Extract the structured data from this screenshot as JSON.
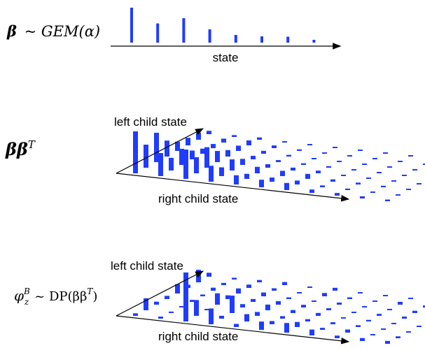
{
  "panel1": {
    "formula_beta": "β",
    "formula_rest": "~ GEM(α)",
    "axis_label": "state",
    "stick_heights": [
      1.0,
      0.55,
      0.7,
      0.38,
      0.22,
      0.18,
      0.17,
      0.08
    ]
  },
  "panel2": {
    "formula": "ββ",
    "formula_sup": "T",
    "axis_left_label": "left child state",
    "axis_right_label": "right child state"
  },
  "panel3": {
    "formula_phi": "φ",
    "formula_sup": "B",
    "formula_sub": "z",
    "formula_rest": "~ DP(ββ",
    "formula_rest_sup": "T",
    "formula_close": ")",
    "axis_left_label": "left child state",
    "axis_right_label": "right child state"
  },
  "colors": {
    "bar": "#1f3cff",
    "axis": "#000000"
  }
}
